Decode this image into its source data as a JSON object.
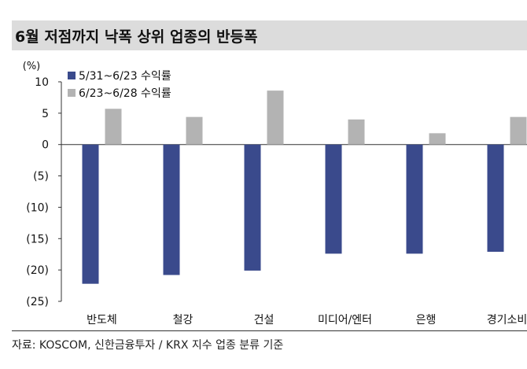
{
  "title": "6월 저점까지 낙폭 상위 업종의 반등폭",
  "source": "자료: KOSCOM, 신한금융투자 / KRX 지수 업종 분류 기준",
  "chart_data": {
    "type": "bar",
    "unit_label": "(%)",
    "categories": [
      "반도체",
      "철강",
      "건설",
      "미디어/엔터",
      "은행",
      "경기소비"
    ],
    "series": [
      {
        "name": "5/31~6/23 수익률",
        "color": "#3a4a8c",
        "values": [
          -22.2,
          -20.8,
          -20.1,
          -17.4,
          -17.4,
          -17.1
        ]
      },
      {
        "name": "6/23~6/28 수익률",
        "color": "#b3b3b3",
        "values": [
          5.7,
          4.4,
          8.6,
          4.0,
          1.8,
          4.4
        ]
      }
    ],
    "yticks": [
      10,
      5,
      0,
      -5,
      -10,
      -15,
      -20,
      -25
    ],
    "ytick_labels": [
      "10",
      "5",
      "0",
      "(5)",
      "(10)",
      "(15)",
      "(20)",
      "(25)"
    ],
    "ylim": [
      -25,
      10
    ],
    "legend_position": "top-left",
    "grid": false
  }
}
